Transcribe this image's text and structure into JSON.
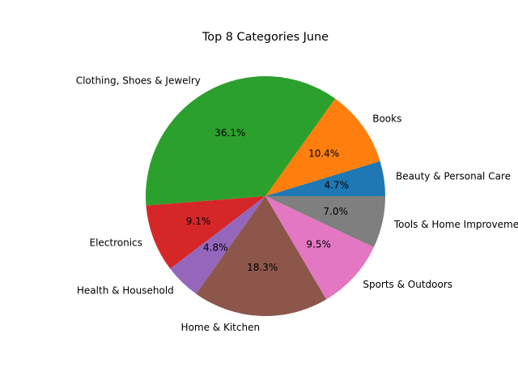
{
  "chart_data": {
    "type": "pie",
    "title": "Top 8 Categories June",
    "categories": [
      "Beauty & Personal Care",
      "Books",
      "Clothing, Shoes & Jewelry",
      "Electronics",
      "Health & Household",
      "Home & Kitchen",
      "Sports & Outdoors",
      "Tools & Home Improvement"
    ],
    "values": [
      4.7,
      10.4,
      36.1,
      9.1,
      4.8,
      18.3,
      9.5,
      7.0
    ],
    "percent_labels": [
      "4.7%",
      "10.4%",
      "36.1%",
      "9.1%",
      "4.8%",
      "18.3%",
      "9.5%",
      "7.0%"
    ],
    "colors": [
      "#1f77b4",
      "#ff7f0e",
      "#2ca02c",
      "#d62728",
      "#9467bd",
      "#8c564b",
      "#e377c2",
      "#7f7f7f"
    ],
    "start_angle_deg": 0,
    "direction": "counterclockwise",
    "legend": "none"
  }
}
